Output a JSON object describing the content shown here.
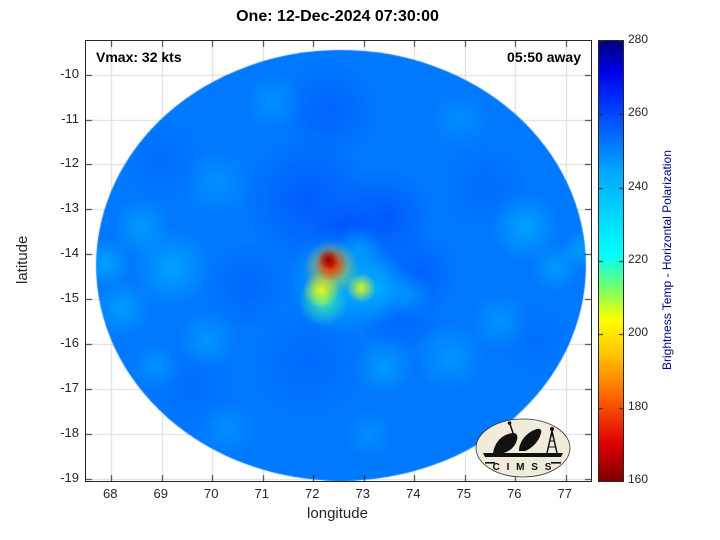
{
  "chart_data": {
    "type": "heatmap",
    "title": "One: 12-Dec-2024 07:30:00",
    "annotations": {
      "vmax": "Vmax: 32 kts",
      "time_to": "05:50 away"
    },
    "xlabel": "longitude",
    "ylabel": "latitude",
    "xlim": [
      67.5,
      77.5
    ],
    "ylim": [
      -9.25,
      -19.05
    ],
    "x_ticks": [
      68,
      69,
      70,
      71,
      72,
      73,
      74,
      75,
      76,
      77
    ],
    "y_ticks": [
      -10,
      -11,
      -12,
      -13,
      -14,
      -15,
      -16,
      -17,
      -18,
      -19
    ],
    "grid": true,
    "colorbar": {
      "label": "Brightness Temp - Horizontal Polarization",
      "ticks": [
        160,
        180,
        200,
        220,
        240,
        260,
        280
      ],
      "range": [
        160,
        280
      ],
      "label_color": "#00008b"
    },
    "colormap_stops": [
      [
        160,
        "#7f0000"
      ],
      [
        170,
        "#dd0000"
      ],
      [
        183,
        "#ff6600"
      ],
      [
        195,
        "#ffc800"
      ],
      [
        204,
        "#ffff00"
      ],
      [
        213,
        "#6eff6e"
      ],
      [
        222,
        "#00ffff"
      ],
      [
        244,
        "#00aaff"
      ],
      [
        262,
        "#003cff"
      ],
      [
        272,
        "#0000e6"
      ],
      [
        280,
        "#00007f"
      ]
    ],
    "background_value": 252,
    "disc": {
      "center_lon": 72.55,
      "center_lat": -14.25,
      "rx_deg": 4.85,
      "ry_deg": 4.8
    },
    "features_key": [
      "lon",
      "lat",
      "radius_deg",
      "value_K",
      "alpha"
    ],
    "features": [
      [
        71.9,
        -12.8,
        1.3,
        261,
        0.55
      ],
      [
        73.4,
        -13.2,
        1.0,
        262,
        0.55
      ],
      [
        72.6,
        -13.6,
        0.7,
        263,
        0.5
      ],
      [
        74.1,
        -14.4,
        0.8,
        260,
        0.5
      ],
      [
        73.7,
        -15.2,
        0.9,
        259,
        0.5
      ],
      [
        70.7,
        -14.7,
        0.9,
        258,
        0.45
      ],
      [
        71.9,
        -16.4,
        1.2,
        257,
        0.45
      ],
      [
        75.4,
        -12.5,
        0.9,
        257,
        0.4
      ],
      [
        69.6,
        -17.0,
        1.0,
        256,
        0.4
      ],
      [
        76.4,
        -15.9,
        0.8,
        256,
        0.4
      ],
      [
        72.3,
        -10.8,
        1.0,
        259,
        0.5
      ],
      [
        69.0,
        -11.9,
        0.9,
        256,
        0.4
      ],
      [
        69.2,
        -14.3,
        0.8,
        239,
        0.6
      ],
      [
        68.6,
        -13.4,
        0.6,
        241,
        0.55
      ],
      [
        68.2,
        -15.2,
        0.6,
        240,
        0.55
      ],
      [
        70.1,
        -12.4,
        0.7,
        243,
        0.45
      ],
      [
        69.9,
        -15.9,
        0.6,
        242,
        0.5
      ],
      [
        76.2,
        -13.4,
        0.7,
        239,
        0.6
      ],
      [
        76.8,
        -14.3,
        0.5,
        241,
        0.55
      ],
      [
        75.7,
        -15.5,
        0.6,
        242,
        0.45
      ],
      [
        74.7,
        -16.3,
        0.7,
        242,
        0.5
      ],
      [
        73.4,
        -16.5,
        0.6,
        240,
        0.5
      ],
      [
        71.2,
        -10.6,
        0.6,
        243,
        0.45
      ],
      [
        74.9,
        -11.0,
        0.6,
        244,
        0.4
      ],
      [
        67.9,
        -14.2,
        0.5,
        239,
        0.6
      ],
      [
        77.3,
        -13.9,
        0.4,
        240,
        0.55
      ],
      [
        70.3,
        -17.9,
        0.6,
        243,
        0.4
      ],
      [
        73.1,
        -18.0,
        0.5,
        243,
        0.4
      ],
      [
        68.9,
        -16.5,
        0.5,
        242,
        0.45
      ],
      [
        72.6,
        -14.6,
        1.1,
        236,
        0.65
      ],
      [
        73.3,
        -14.8,
        0.7,
        237,
        0.6
      ],
      [
        73.9,
        -14.9,
        0.5,
        240,
        0.5
      ],
      [
        72.9,
        -13.85,
        0.45,
        241,
        0.5
      ],
      [
        72.2,
        -15.05,
        0.5,
        216,
        0.8
      ],
      [
        72.15,
        -14.8,
        0.36,
        204,
        0.9
      ],
      [
        72.95,
        -14.75,
        0.3,
        205,
        0.9
      ],
      [
        72.35,
        -14.3,
        0.55,
        196,
        0.85
      ],
      [
        72.35,
        -14.22,
        0.34,
        172,
        1
      ],
      [
        72.3,
        -14.12,
        0.2,
        163,
        1
      ]
    ]
  },
  "logo": {
    "text": "C I M S S"
  }
}
